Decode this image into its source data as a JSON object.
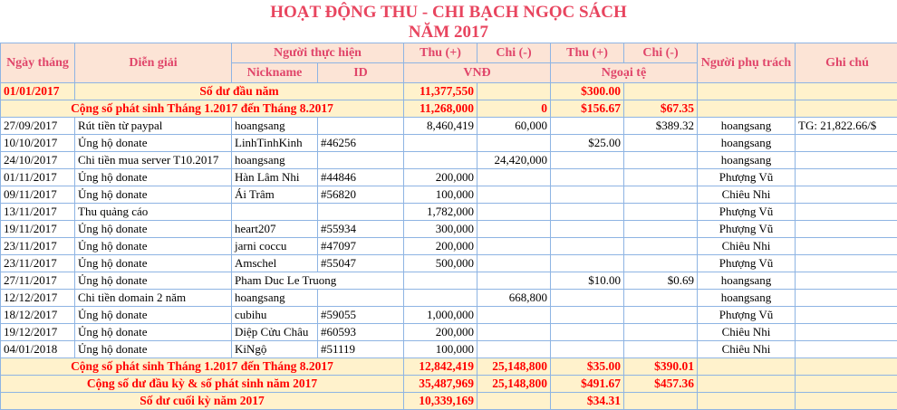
{
  "title": "HOẠT ĐỘNG THU - CHI BẠCH NGỌC SÁCH",
  "subtitle": "NĂM 2017",
  "header": {
    "date": "Ngày tháng",
    "desc": "Diễn giải",
    "performer": "Người thực hiện",
    "nickname": "Nickname",
    "id": "ID",
    "thu1": "Thu (+)",
    "chi1": "Chi (-)",
    "thu2": "Thu (+)",
    "chi2": "Chi (-)",
    "vnd": "VNĐ",
    "foreign": "Ngoại tệ",
    "responsible": "Người phụ trách",
    "note": "Ghi chú"
  },
  "opening": {
    "date": "01/01/2017",
    "label": "Số dư đầu năm",
    "thu_vnd": "11,377,550",
    "thu_usd": "$300.00"
  },
  "prior": {
    "label": "Cộng số phát sinh Tháng 1.2017 đến Tháng 8.2017",
    "thu_vnd": "11,268,000",
    "chi_vnd": "0",
    "thu_usd": "$156.67",
    "chi_usd": "$67.35"
  },
  "rows": [
    {
      "date": "27/09/2017",
      "desc": "Rút tiền từ paypal",
      "nick": "hoangsang",
      "id": "",
      "thu": "8,460,419",
      "chi": "60,000",
      "thu_usd": "",
      "chi_usd": "$389.32",
      "resp": "hoangsang",
      "note": "TG: 21,822.66/$"
    },
    {
      "date": "10/10/2017",
      "desc": "Ủng hộ donate",
      "nick": "LinhTinhKinh",
      "id": "#46256",
      "thu": "",
      "chi": "",
      "thu_usd": "$25.00",
      "chi_usd": "",
      "resp": "hoangsang",
      "note": ""
    },
    {
      "date": "24/10/2017",
      "desc": "Chi tiền mua server T10.2017",
      "nick": "hoangsang",
      "id": "",
      "thu": "",
      "chi": "24,420,000",
      "thu_usd": "",
      "chi_usd": "",
      "resp": "hoangsang",
      "note": ""
    },
    {
      "date": "01/11/2017",
      "desc": "Ủng hộ donate",
      "nick": "Hàn Lâm Nhi",
      "id": "#44846",
      "thu": "200,000",
      "chi": "",
      "thu_usd": "",
      "chi_usd": "",
      "resp": "Phượng Vũ",
      "note": ""
    },
    {
      "date": "09/11/2017",
      "desc": "Ủng hộ donate",
      "nick": "Ái Trâm",
      "id": "#56820",
      "thu": "100,000",
      "chi": "",
      "thu_usd": "",
      "chi_usd": "",
      "resp": "Chiêu Nhi",
      "note": ""
    },
    {
      "date": "13/11/2017",
      "desc": "Thu quảng cáo",
      "nick": "",
      "id": "",
      "thu": "1,782,000",
      "chi": "",
      "thu_usd": "",
      "chi_usd": "",
      "resp": "Phượng Vũ",
      "note": ""
    },
    {
      "date": "19/11/2017",
      "desc": "Ủng hộ donate",
      "nick": "heart207",
      "id": "#55934",
      "thu": "300,000",
      "chi": "",
      "thu_usd": "",
      "chi_usd": "",
      "resp": "Phượng Vũ",
      "note": ""
    },
    {
      "date": "23/11/2017",
      "desc": "Ủng hộ donate",
      "nick": "jarni coccu",
      "id": "#47097",
      "thu": "200,000",
      "chi": "",
      "thu_usd": "",
      "chi_usd": "",
      "resp": "Chiêu Nhi",
      "note": ""
    },
    {
      "date": "23/11/2017",
      "desc": "Ủng hộ donate",
      "nick": "Amschel",
      "id": "#55047",
      "thu": "500,000",
      "chi": "",
      "thu_usd": "",
      "chi_usd": "",
      "resp": "Phượng Vũ",
      "note": ""
    },
    {
      "date": "27/11/2017",
      "desc": "Ủng hộ donate",
      "nick": "Pham Duc Le Truong",
      "id": "",
      "thu": "",
      "chi": "",
      "thu_usd": "$10.00",
      "chi_usd": "$0.69",
      "resp": "hoangsang",
      "note": ""
    },
    {
      "date": "12/12/2017",
      "desc": "Chi tiền domain 2 năm",
      "nick": "hoangsang",
      "id": "",
      "thu": "",
      "chi": "668,800",
      "thu_usd": "",
      "chi_usd": "",
      "resp": "hoangsang",
      "note": ""
    },
    {
      "date": "18/12/2017",
      "desc": "Ủng hộ donate",
      "nick": "cubihu",
      "id": "#59055",
      "thu": "1,000,000",
      "chi": "",
      "thu_usd": "",
      "chi_usd": "",
      "resp": "Phượng Vũ",
      "note": ""
    },
    {
      "date": "19/12/2017",
      "desc": "Ủng hộ donate",
      "nick": "Diệp Cửu Châu",
      "id": "#60593",
      "thu": "200,000",
      "chi": "",
      "thu_usd": "",
      "chi_usd": "",
      "resp": "Chiêu Nhi",
      "note": ""
    },
    {
      "date": "04/01/2018",
      "desc": "Ủng hộ donate",
      "nick": "KiNgộ",
      "id": "#51119",
      "thu": "100,000",
      "chi": "",
      "thu_usd": "",
      "chi_usd": "",
      "resp": "Chiêu Nhi",
      "note": ""
    }
  ],
  "totals": [
    {
      "label": "Cộng số phát sinh Tháng 1.2017 đến Tháng 8.2017",
      "thu_vnd": "12,842,419",
      "chi_vnd": "25,148,800",
      "thu_usd": "$35.00",
      "chi_usd": "$390.01"
    },
    {
      "label": "Cộng số dư đầu kỳ & số phát sinh năm 2017",
      "thu_vnd": "35,487,969",
      "chi_vnd": "25,148,800",
      "thu_usd": "$491.67",
      "chi_usd": "$457.36"
    },
    {
      "label": "Số dư cuối kỳ năm 2017",
      "thu_vnd": "10,339,169",
      "chi_vnd": "",
      "thu_usd": "$34.31",
      "chi_usd": ""
    }
  ]
}
